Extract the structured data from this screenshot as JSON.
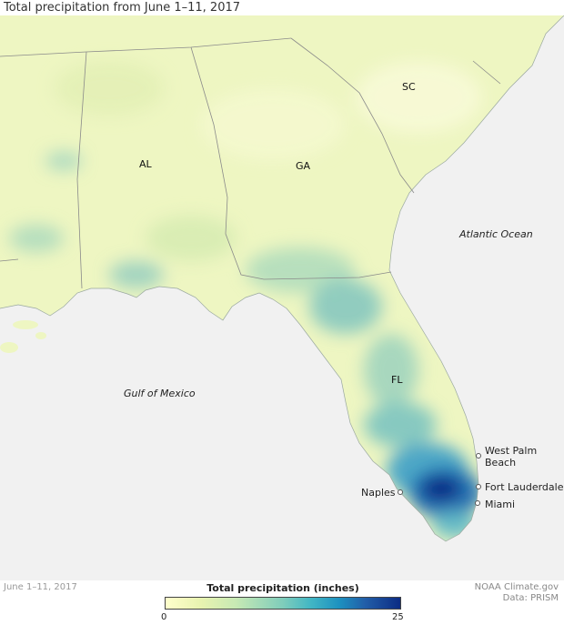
{
  "title": "Total precipitation from June 1–11, 2017",
  "states": [
    "AL",
    "GA",
    "SC",
    "FL"
  ],
  "water_labels": {
    "gulf": "Gulf of Mexico",
    "atlantic": "Atlantic Ocean"
  },
  "cities": {
    "west_palm_beach": [
      "West Palm",
      "Beach"
    ],
    "fort_lauderdale": "Fort Lauderdale",
    "miami": "Miami",
    "naples": "Naples"
  },
  "footer": {
    "date_note": "June 1–11, 2017",
    "credit_line1": "NOAA Climate.gov",
    "credit_line2": "Data: PRISM"
  },
  "legend": {
    "title": "Total precipitation (inches)",
    "min": "0",
    "max": "25",
    "colors": [
      "#ffffcc",
      "#c7e9b4",
      "#7fcdbb",
      "#41b6c4",
      "#1d91c0",
      "#225ea8",
      "#0c2c84"
    ]
  }
}
